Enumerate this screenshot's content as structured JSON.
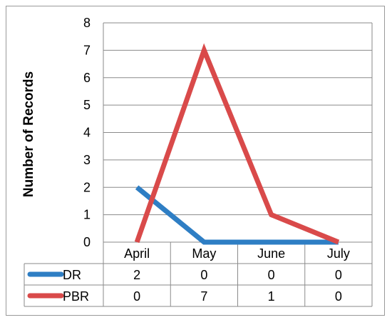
{
  "chart_data": {
    "type": "line",
    "title": "",
    "xlabel": "",
    "ylabel": "Number of Records",
    "categories": [
      "April",
      "May",
      "June",
      "July"
    ],
    "ylim": [
      0,
      8
    ],
    "yticks": [
      0,
      1,
      2,
      3,
      4,
      5,
      6,
      7,
      8
    ],
    "grid": true,
    "legend": "data-table-left",
    "series": [
      {
        "name": "DR",
        "values": [
          2,
          0,
          0,
          0
        ],
        "color": "#2e7ec4"
      },
      {
        "name": "PBR",
        "values": [
          0,
          7,
          1,
          0
        ],
        "color": "#d94a4a"
      }
    ]
  }
}
